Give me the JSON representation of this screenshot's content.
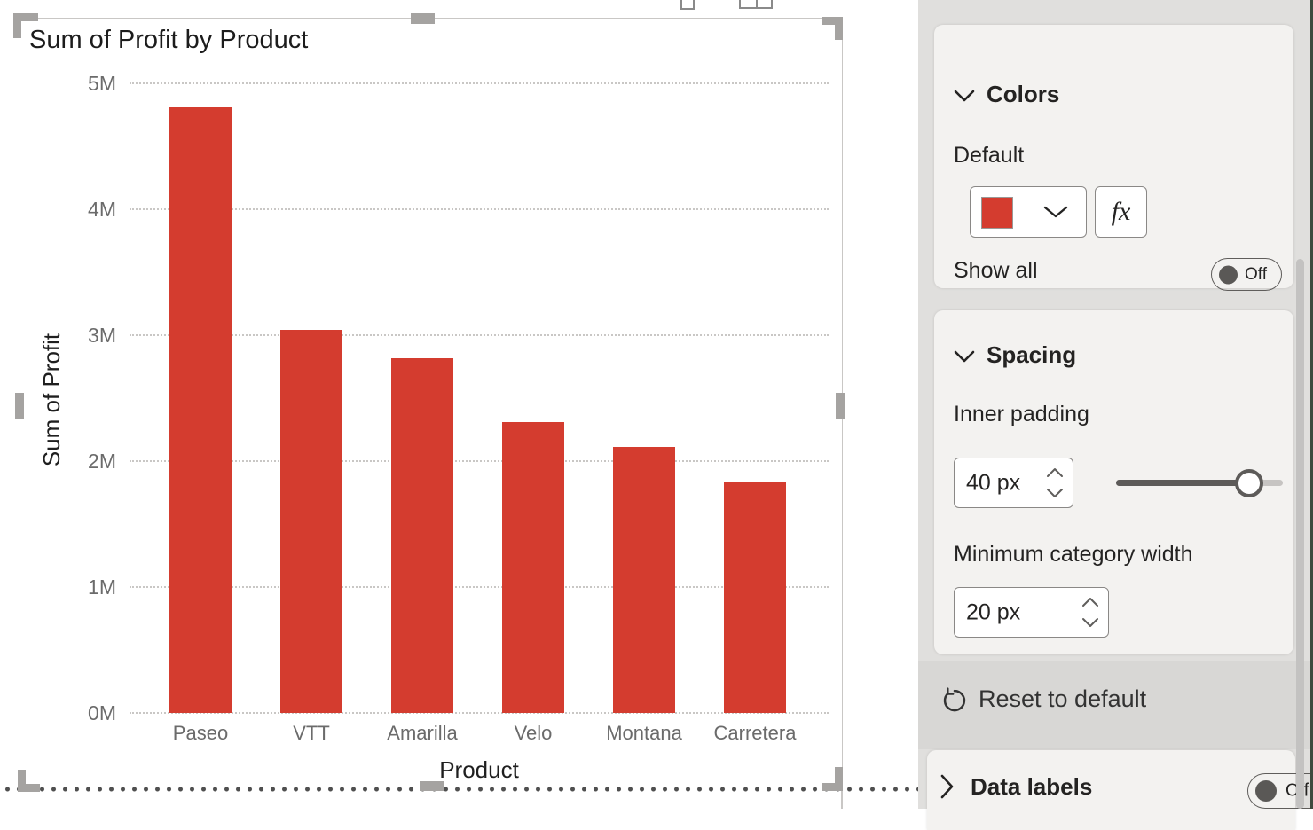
{
  "chart_data": {
    "type": "bar",
    "title": "Sum of Profit by Product",
    "categories": [
      "Paseo",
      "VTT",
      "Amarilla",
      "Velo",
      "Montana",
      "Carretera"
    ],
    "values": [
      4810000,
      3040000,
      2820000,
      2310000,
      2110000,
      1830000
    ],
    "xlabel": "Product",
    "ylabel": "Sum of Profit",
    "ytick_labels": [
      "0M",
      "1M",
      "2M",
      "3M",
      "4M",
      "5M"
    ],
    "ylim": [
      0,
      5000000
    ],
    "grid": "dotted horizontal",
    "legend": "none",
    "bar_color": "#d43c2f"
  },
  "format_pane": {
    "colors_card": {
      "title": "Colors",
      "default_label": "Default",
      "swatch_color": "#d43c2f",
      "fx_label": "fx",
      "show_all_label": "Show all",
      "show_all_state": "Off"
    },
    "spacing_card": {
      "title": "Spacing",
      "inner_padding_label": "Inner padding",
      "inner_padding_value": "40 px",
      "inner_padding_slider_percent": 80,
      "min_category_width_label": "Minimum category width",
      "min_category_width_value": "20 px"
    },
    "reset_label": "Reset to default",
    "data_labels_card": {
      "title": "Data labels",
      "state": "Off"
    }
  }
}
